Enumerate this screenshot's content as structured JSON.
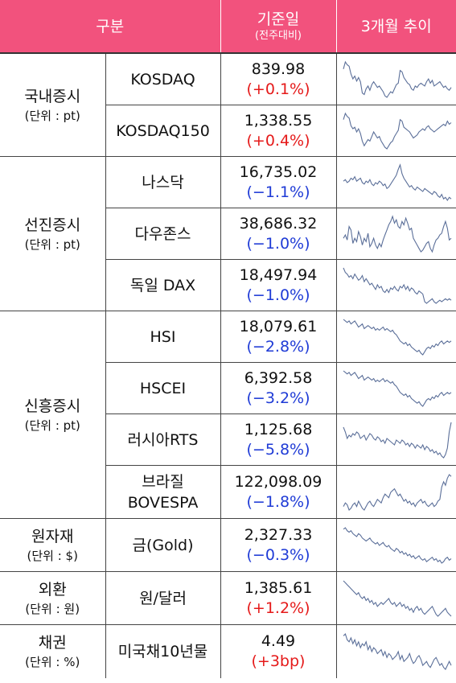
{
  "header": {
    "category": "구분",
    "base_date": "기준일",
    "base_date_sub": "(전주대비)",
    "trend": "3개월 추이"
  },
  "colors": {
    "header_bg": "#f2527d",
    "up": "#e51a1a",
    "down": "#1f3bd6",
    "sparkline": "#5b6f99"
  },
  "groups": [
    {
      "name": "국내증시",
      "unit": "(단위 : pt)",
      "rows": [
        {
          "name": "KOSDAQ",
          "value": "839.98",
          "change": "(+0.1%)",
          "dir": "up",
          "trend": [
            62,
            72,
            68,
            66,
            55,
            48,
            52,
            45,
            50,
            44,
            28,
            26,
            34,
            38,
            32,
            40,
            44,
            40,
            36,
            38,
            34,
            30,
            24,
            22,
            26,
            30,
            28,
            34,
            40,
            42,
            60,
            58,
            50,
            46,
            42,
            40,
            34,
            32,
            38,
            36,
            40,
            42,
            40,
            38,
            44,
            48,
            42,
            46,
            38,
            40,
            42,
            44,
            40,
            36,
            38,
            34,
            32,
            36
          ]
        },
        {
          "name": "KOSDAQ150",
          "value": "1,338.55",
          "change": "(+0.4%)",
          "dir": "up",
          "trend": [
            58,
            66,
            62,
            60,
            50,
            46,
            48,
            42,
            46,
            40,
            30,
            24,
            28,
            32,
            30,
            36,
            42,
            38,
            34,
            36,
            30,
            26,
            22,
            20,
            24,
            28,
            30,
            36,
            40,
            44,
            58,
            56,
            48,
            46,
            44,
            42,
            38,
            34,
            36,
            38,
            42,
            44,
            46,
            44,
            48,
            50,
            46,
            44,
            42,
            44,
            46,
            48,
            50,
            52,
            50,
            56,
            52,
            54
          ]
        }
      ]
    },
    {
      "name": "선진증시",
      "unit": "(단위 : pt)",
      "rows": [
        {
          "name": "나스닥",
          "value": "16,735.02",
          "change": "(−1.1%)",
          "dir": "down",
          "trend": [
            40,
            42,
            38,
            40,
            44,
            42,
            46,
            40,
            42,
            44,
            38,
            36,
            40,
            38,
            42,
            36,
            34,
            38,
            36,
            40,
            38,
            34,
            36,
            30,
            32,
            36,
            40,
            44,
            48,
            56,
            62,
            50,
            44,
            40,
            36,
            32,
            34,
            30,
            28,
            32,
            30,
            28,
            26,
            30,
            28,
            26,
            24,
            22,
            26,
            24,
            20,
            18,
            22,
            16,
            18,
            14,
            18,
            16
          ]
        },
        {
          "name": "다우존스",
          "value": "38,686.32",
          "change": "(−1.0%)",
          "dir": "down",
          "trend": [
            30,
            34,
            28,
            44,
            40,
            24,
            30,
            26,
            38,
            32,
            22,
            30,
            26,
            36,
            20,
            24,
            30,
            22,
            18,
            24,
            20,
            28,
            34,
            40,
            46,
            50,
            56,
            48,
            52,
            44,
            42,
            50,
            46,
            54,
            48,
            40,
            42,
            30,
            26,
            22,
            18,
            14,
            16,
            20,
            24,
            26,
            18,
            14,
            22,
            28,
            30,
            34,
            36,
            44,
            50,
            42,
            28,
            30
          ]
        },
        {
          "name": "독일 DAX",
          "value": "18,497.94",
          "change": "(−1.0%)",
          "dir": "down",
          "trend": [
            58,
            52,
            50,
            46,
            48,
            44,
            50,
            46,
            42,
            44,
            48,
            40,
            44,
            40,
            36,
            38,
            34,
            30,
            36,
            32,
            34,
            28,
            26,
            30,
            26,
            32,
            30,
            34,
            30,
            28,
            34,
            32,
            36,
            30,
            34,
            28,
            32,
            30,
            26,
            24,
            28,
            26,
            24,
            14,
            12,
            14,
            16,
            18,
            14,
            12,
            14,
            16,
            14,
            16,
            18,
            16,
            18,
            16
          ]
        }
      ]
    },
    {
      "name": "신흥증시",
      "unit": "(단위 : pt)",
      "rows": [
        {
          "name": "HSI",
          "value": "18,079.61",
          "change": "(−2.8%)",
          "dir": "down",
          "trend": [
            54,
            52,
            50,
            52,
            48,
            50,
            52,
            48,
            44,
            46,
            48,
            42,
            44,
            46,
            44,
            42,
            44,
            40,
            42,
            40,
            42,
            44,
            40,
            42,
            40,
            38,
            40,
            36,
            34,
            30,
            26,
            24,
            22,
            24,
            20,
            22,
            18,
            16,
            14,
            12,
            14,
            10,
            8,
            12,
            16,
            18,
            16,
            20,
            18,
            22,
            20,
            24,
            26,
            22,
            24,
            26,
            24,
            26
          ]
        },
        {
          "name": "HSCEI",
          "value": "6,392.58",
          "change": "(−3.2%)",
          "dir": "down",
          "trend": [
            52,
            50,
            48,
            50,
            46,
            48,
            50,
            46,
            42,
            44,
            46,
            40,
            42,
            44,
            42,
            40,
            42,
            38,
            40,
            38,
            40,
            42,
            38,
            40,
            38,
            36,
            38,
            34,
            32,
            28,
            24,
            22,
            20,
            22,
            18,
            20,
            16,
            14,
            12,
            10,
            12,
            8,
            6,
            10,
            14,
            16,
            14,
            18,
            16,
            20,
            18,
            22,
            24,
            20,
            22,
            24,
            22,
            24
          ]
        },
        {
          "name": "러시아RTS",
          "value": "1,125.68",
          "change": "(−5.8%)",
          "dir": "down",
          "trend": [
            46,
            40,
            32,
            36,
            34,
            38,
            36,
            40,
            38,
            32,
            34,
            36,
            30,
            34,
            38,
            36,
            32,
            30,
            34,
            32,
            28,
            30,
            26,
            32,
            30,
            28,
            26,
            24,
            30,
            28,
            26,
            30,
            28,
            24,
            26,
            22,
            26,
            24,
            20,
            24,
            22,
            20,
            24,
            18,
            22,
            20,
            16,
            18,
            14,
            16,
            12,
            14,
            10,
            8,
            12,
            20,
            40,
            52
          ]
        },
        {
          "name": "브라질\nBOVESPA",
          "value": "122,098.09",
          "change": "(−1.8%)",
          "dir": "down",
          "trend": [
            18,
            22,
            20,
            14,
            16,
            20,
            22,
            18,
            24,
            20,
            16,
            14,
            18,
            22,
            24,
            20,
            18,
            22,
            26,
            24,
            22,
            28,
            32,
            30,
            28,
            34,
            36,
            38,
            34,
            30,
            32,
            28,
            24,
            26,
            22,
            24,
            20,
            22,
            18,
            22,
            24,
            26,
            22,
            24,
            20,
            18,
            20,
            22,
            18,
            20,
            24,
            26,
            40,
            46,
            42,
            50,
            54,
            52
          ]
        }
      ]
    },
    {
      "name": "원자재",
      "unit": "(단위 : $)",
      "rows": [
        {
          "name": "금(Gold)",
          "value": "2,327.33",
          "change": "(−0.3%)",
          "dir": "down",
          "trend": [
            52,
            54,
            50,
            48,
            50,
            46,
            44,
            42,
            46,
            44,
            40,
            38,
            36,
            38,
            40,
            36,
            34,
            32,
            34,
            30,
            32,
            34,
            30,
            28,
            30,
            26,
            24,
            22,
            26,
            24,
            20,
            22,
            18,
            20,
            16,
            18,
            14,
            16,
            12,
            14,
            16,
            12,
            10,
            12,
            8,
            10,
            12,
            14,
            10,
            12,
            8,
            10,
            6,
            8,
            12,
            14,
            10,
            12
          ]
        }
      ]
    },
    {
      "name": "외환",
      "unit": "(단위 : 원)",
      "rows": [
        {
          "name": "원/달러",
          "value": "1,385.61",
          "change": "(+1.2%)",
          "dir": "up",
          "trend": [
            52,
            50,
            48,
            46,
            44,
            42,
            40,
            38,
            40,
            36,
            34,
            36,
            32,
            34,
            30,
            32,
            28,
            30,
            26,
            28,
            30,
            28,
            30,
            32,
            34,
            30,
            28,
            30,
            26,
            28,
            30,
            26,
            28,
            24,
            26,
            22,
            24,
            20,
            24,
            26,
            22,
            24,
            20,
            18,
            20,
            22,
            24,
            26,
            22,
            18,
            16,
            18,
            20,
            22,
            24,
            20,
            18,
            16
          ]
        }
      ]
    },
    {
      "name": "채권",
      "unit": "(단위 : %)",
      "rows": [
        {
          "name": "미국채10년물",
          "value": "4.49",
          "change": "(+3bp)",
          "dir": "up",
          "trend": [
            50,
            52,
            46,
            44,
            48,
            42,
            46,
            40,
            44,
            38,
            42,
            40,
            44,
            36,
            40,
            34,
            38,
            36,
            32,
            34,
            36,
            30,
            34,
            28,
            32,
            30,
            26,
            28,
            30,
            34,
            26,
            30,
            24,
            26,
            28,
            32,
            26,
            22,
            24,
            28,
            30,
            26,
            20,
            22,
            24,
            20,
            18,
            22,
            26,
            28,
            24,
            20,
            22,
            18,
            16,
            20,
            24,
            20
          ]
        }
      ]
    }
  ]
}
